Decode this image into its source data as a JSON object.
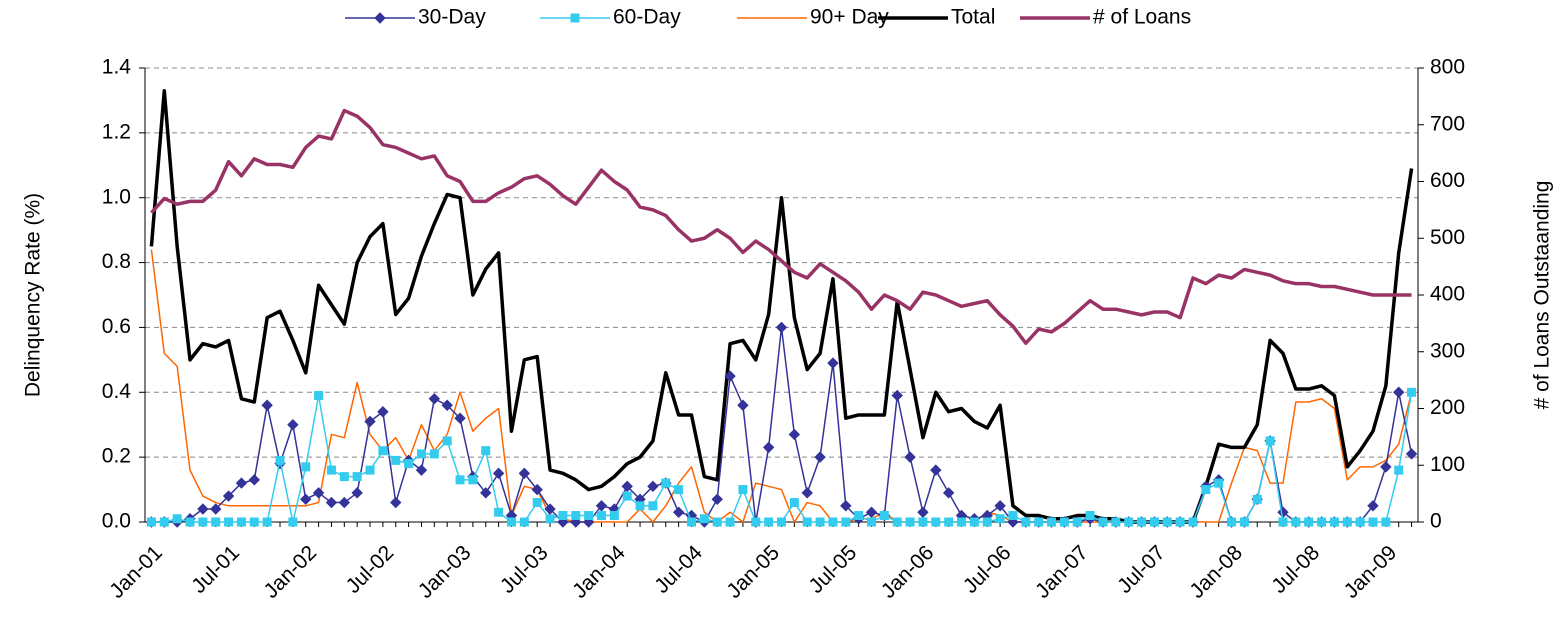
{
  "chart_data": {
    "type": "line",
    "categories": [
      "Jan-01",
      null,
      null,
      null,
      null,
      null,
      "Jul-01",
      null,
      null,
      null,
      null,
      null,
      "Jan-02",
      null,
      null,
      null,
      null,
      null,
      "Jul-02",
      null,
      null,
      null,
      null,
      null,
      "Jan-03",
      null,
      null,
      null,
      null,
      null,
      "Jul-03",
      null,
      null,
      null,
      null,
      null,
      "Jan-04",
      null,
      null,
      null,
      null,
      null,
      "Jul-04",
      null,
      null,
      null,
      null,
      null,
      "Jan-05",
      null,
      null,
      null,
      null,
      null,
      "Jul-05",
      null,
      null,
      null,
      null,
      null,
      "Jan-06",
      null,
      null,
      null,
      null,
      null,
      "Jul-06",
      null,
      null,
      null,
      null,
      null,
      "Jan-07",
      null,
      null,
      null,
      null,
      null,
      "Jul-07",
      null,
      null,
      null,
      null,
      null,
      "Jan-08",
      null,
      null,
      null,
      null,
      null,
      "Jul-08",
      null,
      null,
      null,
      null,
      null,
      "Jan-09",
      null,
      null
    ],
    "y_label": "Delinquency Rate (%)",
    "y2_label": "# of Loans Outstaanding",
    "ylim": [
      0,
      1.4
    ],
    "yticks": [
      {
        "value": 0,
        "label": "0.0"
      },
      {
        "value": 0.2,
        "label": "0.2"
      },
      {
        "value": 0.4,
        "label": "0.4"
      },
      {
        "value": 0.6,
        "label": "0.6"
      },
      {
        "value": 0.8,
        "label": "0.8"
      },
      {
        "value": 1,
        "label": "1.0"
      },
      {
        "value": 1.2,
        "label": "1.2"
      },
      {
        "value": 1.4,
        "label": "1.4"
      }
    ],
    "y2lim": [
      0,
      800
    ],
    "y2ticks": [
      0,
      100,
      200,
      300,
      400,
      500,
      600,
      700,
      800
    ],
    "grid": true,
    "legend": "top",
    "series": [
      {
        "name": "30-Day",
        "color": "#333399",
        "marker": "diamond",
        "width": 1.5,
        "values": [
          0,
          0,
          0,
          0.01,
          0.04,
          0.04,
          0.08,
          0.12,
          0.13,
          0.36,
          0.18,
          0.3,
          0.07,
          0.09,
          0.06,
          0.06,
          0.09,
          0.31,
          0.34,
          0.06,
          0.19,
          0.16,
          0.38,
          0.36,
          0.32,
          0.14,
          0.09,
          0.15,
          0.02,
          0.15,
          0.1,
          0.04,
          0,
          0,
          0,
          0.05,
          0.04,
          0.11,
          0.07,
          0.11,
          0.12,
          0.03,
          0.02,
          0,
          0.07,
          0.45,
          0.36,
          0,
          0.23,
          0.6,
          0.27,
          0.09,
          0.2,
          0.49,
          0.05,
          0.01,
          0.03,
          0.02,
          0.39,
          0.2,
          0.03,
          0.16,
          0.09,
          0.02,
          0.01,
          0.02,
          0.05,
          0,
          0,
          0,
          0,
          0,
          0,
          0.01,
          0,
          0,
          0,
          0,
          0,
          0,
          0,
          0,
          0.11,
          0.13,
          0,
          0,
          0.07,
          0.25,
          0.03,
          0,
          0,
          0,
          0,
          0,
          0,
          0.05,
          0.17,
          0.4,
          0.21
        ]
      },
      {
        "name": "60-Day",
        "color": "#33ccee",
        "marker": "square",
        "width": 1.5,
        "values": [
          0,
          0,
          0.01,
          0,
          0,
          0,
          0,
          0,
          0,
          0,
          0.19,
          0,
          0.17,
          0.39,
          0.16,
          0.14,
          0.14,
          0.16,
          0.22,
          0.19,
          0.18,
          0.21,
          0.21,
          0.25,
          0.13,
          0.13,
          0.22,
          0.03,
          0,
          0,
          0.06,
          0.01,
          0.02,
          0.02,
          0.02,
          0.02,
          0.02,
          0.08,
          0.05,
          0.05,
          0.12,
          0.1,
          0,
          0.01,
          0,
          0,
          0.1,
          0,
          0,
          0,
          0.06,
          0,
          0,
          0,
          0,
          0.02,
          0,
          0.02,
          0,
          0,
          0,
          0,
          0,
          0,
          0,
          0,
          0.01,
          0.02,
          0,
          0,
          0,
          0,
          0,
          0.02,
          0,
          0,
          0,
          0,
          0,
          0,
          0,
          0,
          0.1,
          0.12,
          0,
          0,
          0.07,
          0.25,
          0,
          0,
          0,
          0,
          0,
          0,
          0,
          0,
          0,
          0.16,
          0.4
        ]
      },
      {
        "name": "90+ Day",
        "color": "#ff6600",
        "marker": "none",
        "width": 1.5,
        "values": [
          0.84,
          0.52,
          0.48,
          0.16,
          0.08,
          0.06,
          0.05,
          0.05,
          0.05,
          0.05,
          0.05,
          0.05,
          0.05,
          0.06,
          0.27,
          0.26,
          0.43,
          0.27,
          0.22,
          0.26,
          0.19,
          0.3,
          0.22,
          0.27,
          0.4,
          0.28,
          0.32,
          0.35,
          0.02,
          0.11,
          0.1,
          0.02,
          0.01,
          0,
          0,
          0,
          0,
          0,
          0.04,
          0,
          0.05,
          0.12,
          0.17,
          0.03,
          0,
          0.03,
          0,
          0.12,
          0.11,
          0.1,
          0,
          0.06,
          0.05,
          0,
          0,
          0.01,
          0.01,
          0.03,
          0,
          0,
          0,
          0,
          0,
          0,
          0,
          0.03,
          0.02,
          0,
          0,
          0,
          0,
          0,
          0,
          0,
          0,
          0,
          0,
          0,
          0,
          0,
          0,
          0,
          0,
          0,
          0.12,
          0.23,
          0.22,
          0.12,
          0.12,
          0.37,
          0.37,
          0.38,
          0.35,
          0.13,
          0.17,
          0.17,
          0.19,
          0.24,
          0.4
        ]
      },
      {
        "name": "Total",
        "color": "#000000",
        "marker": "none",
        "width": 3.5,
        "values": [
          0.85,
          1.33,
          0.85,
          0.5,
          0.55,
          0.54,
          0.56,
          0.38,
          0.37,
          0.63,
          0.65,
          0.56,
          0.46,
          0.73,
          0.67,
          0.61,
          0.8,
          0.88,
          0.92,
          0.64,
          0.69,
          0.82,
          0.92,
          1.01,
          1.0,
          0.7,
          0.78,
          0.83,
          0.28,
          0.5,
          0.51,
          0.16,
          0.15,
          0.13,
          0.1,
          0.11,
          0.14,
          0.18,
          0.2,
          0.25,
          0.46,
          0.33,
          0.33,
          0.14,
          0.13,
          0.55,
          0.56,
          0.5,
          0.64,
          1.0,
          0.63,
          0.47,
          0.52,
          0.75,
          0.32,
          0.33,
          0.33,
          0.33,
          0.68,
          0.47,
          0.26,
          0.4,
          0.34,
          0.35,
          0.31,
          0.29,
          0.36,
          0.05,
          0.02,
          0.02,
          0.01,
          0.01,
          0.02,
          0.02,
          0.01,
          0.01,
          0,
          0,
          0,
          0,
          0,
          0,
          0.11,
          0.24,
          0.23,
          0.23,
          0.3,
          0.56,
          0.52,
          0.41,
          0.41,
          0.42,
          0.39,
          0.17,
          0.22,
          0.28,
          0.42,
          0.83,
          1.09
        ]
      },
      {
        "name": "# of Loans",
        "color": "#993366",
        "marker": "none",
        "width": 3.5,
        "axis": "y2",
        "values": [
          545,
          570,
          560,
          565,
          565,
          585,
          635,
          610,
          640,
          630,
          630,
          625,
          660,
          680,
          675,
          725,
          715,
          695,
          665,
          660,
          650,
          640,
          645,
          610,
          600,
          565,
          565,
          580,
          590,
          605,
          610,
          595,
          575,
          560,
          590,
          620,
          600,
          585,
          555,
          550,
          540,
          515,
          495,
          500,
          515,
          500,
          475,
          495,
          480,
          460,
          440,
          430,
          455,
          440,
          425,
          405,
          375,
          400,
          390,
          375,
          405,
          400,
          390,
          380,
          385,
          390,
          365,
          345,
          315,
          340,
          335,
          350,
          370,
          390,
          375,
          375,
          370,
          365,
          370,
          370,
          360,
          430,
          420,
          435,
          430,
          445,
          440,
          435,
          425,
          420,
          420,
          415,
          415,
          410,
          405,
          400,
          400,
          400,
          400
        ]
      }
    ]
  }
}
